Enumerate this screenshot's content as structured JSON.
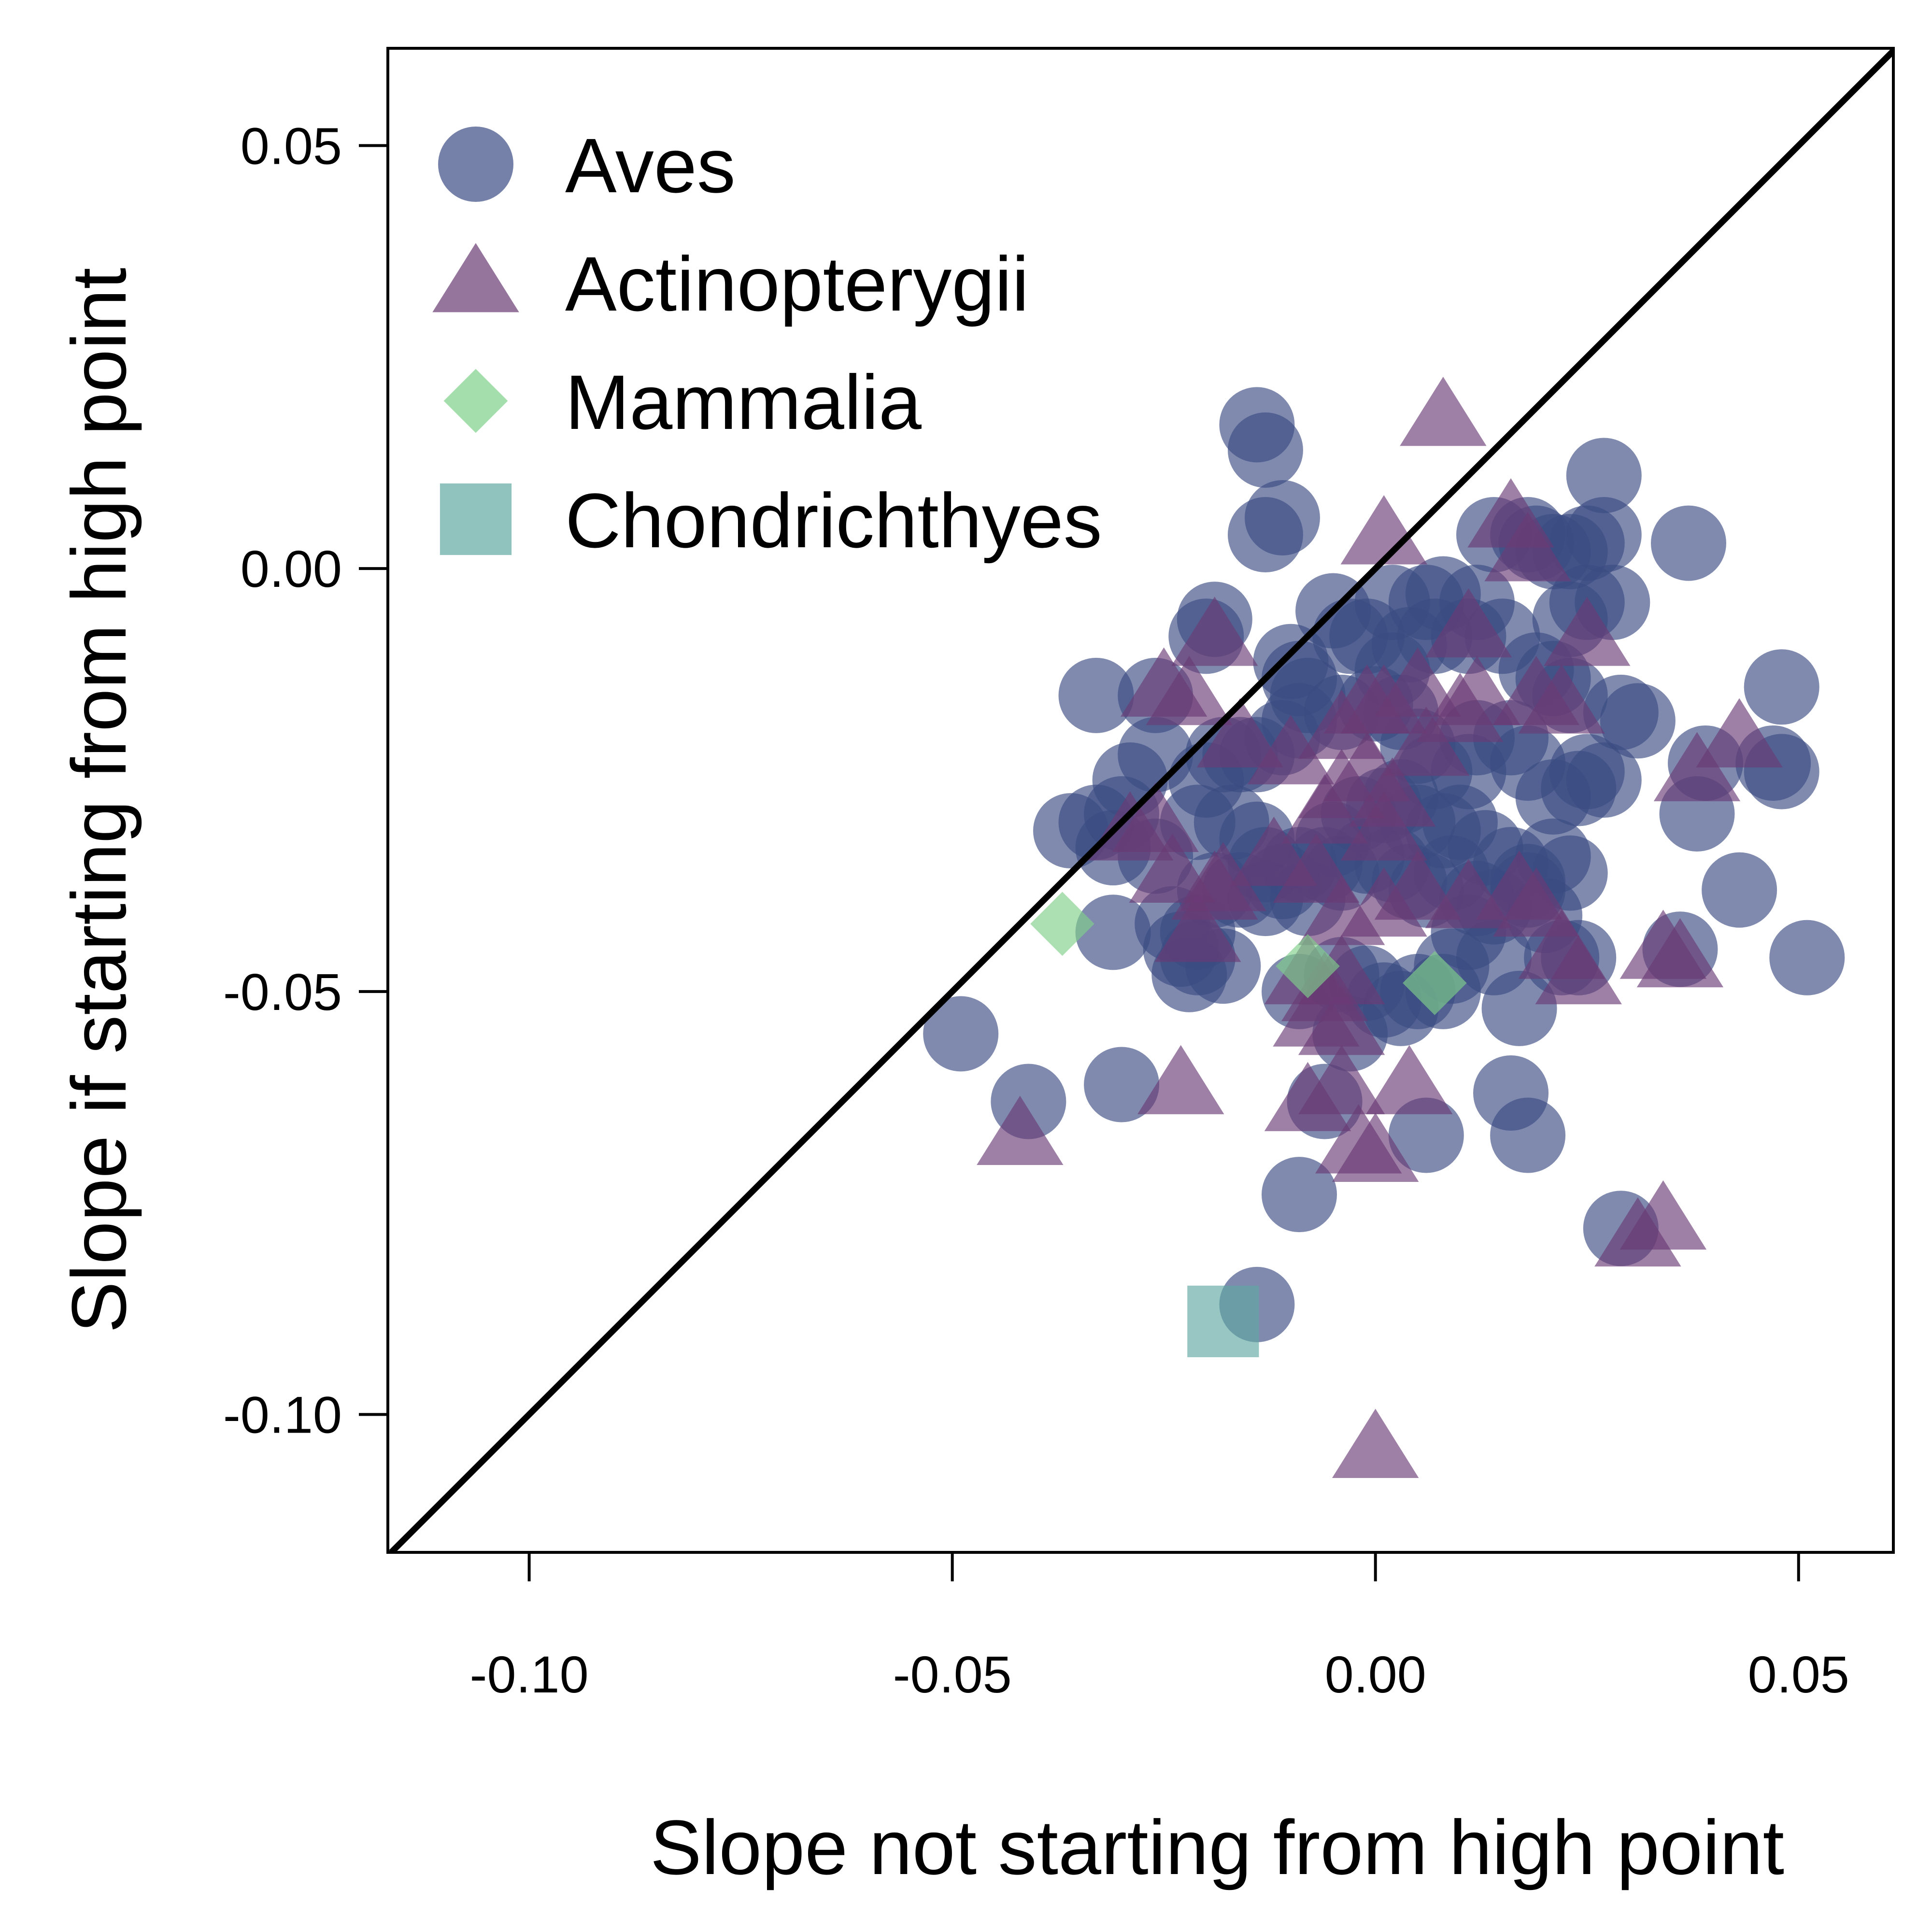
{
  "chart_data": {
    "type": "scatter",
    "xlabel": "Slope not starting from high point",
    "ylabel": "Slope if starting from high point",
    "xlim": [
      -0.1167,
      0.0612
    ],
    "ylim": [
      -0.1163,
      0.0615
    ],
    "xticks": [
      {
        "value": -0.1,
        "label": "-0.10"
      },
      {
        "value": -0.05,
        "label": "-0.05"
      },
      {
        "value": 0.0,
        "label": "0.00"
      },
      {
        "value": 0.05,
        "label": "0.05"
      }
    ],
    "yticks": [
      {
        "value": 0.05,
        "label": "0.05"
      },
      {
        "value": 0.0,
        "label": "0.00"
      },
      {
        "value": -0.05,
        "label": "-0.05"
      },
      {
        "value": -0.1,
        "label": "-0.10"
      }
    ],
    "reference_line": "y = x",
    "legend_position": "top-left",
    "grid": false,
    "series": [
      {
        "name": "Aves",
        "marker": "circle",
        "color": "#3b4b83",
        "points": [
          [
            -0.014,
            0.017
          ],
          [
            -0.013,
            0.014
          ],
          [
            -0.011,
            0.006
          ],
          [
            -0.013,
            0.004
          ],
          [
            -0.019,
            -0.006
          ],
          [
            -0.02,
            -0.008
          ],
          [
            -0.033,
            -0.015
          ],
          [
            -0.026,
            -0.015
          ],
          [
            -0.01,
            -0.011
          ],
          [
            -0.009,
            -0.013
          ],
          [
            -0.005,
            -0.005
          ],
          [
            -0.003,
            -0.008
          ],
          [
            -0.001,
            -0.008
          ],
          [
            0.002,
            -0.004
          ],
          [
            0.006,
            -0.004
          ],
          [
            0.008,
            -0.003
          ],
          [
            0.012,
            -0.004
          ],
          [
            0.014,
            0.004
          ],
          [
            0.018,
            0.004
          ],
          [
            0.019,
            0.003
          ],
          [
            0.021,
            0.002
          ],
          [
            0.023,
            0.002
          ],
          [
            0.025,
            0.003
          ],
          [
            0.027,
            0.004
          ],
          [
            0.027,
            0.011
          ],
          [
            0.037,
            0.003
          ],
          [
            0.025,
            -0.004
          ],
          [
            0.028,
            -0.004
          ],
          [
            0.023,
            -0.006
          ],
          [
            0.015,
            -0.008
          ],
          [
            0.011,
            -0.008
          ],
          [
            0.007,
            -0.008
          ],
          [
            0.004,
            -0.009
          ],
          [
            0.002,
            -0.012
          ],
          [
            0.019,
            -0.012
          ],
          [
            0.021,
            -0.013
          ],
          [
            0.023,
            -0.015
          ],
          [
            0.029,
            -0.017
          ],
          [
            0.031,
            -0.018
          ],
          [
            0.048,
            -0.014
          ],
          [
            0.047,
            -0.023
          ],
          [
            0.048,
            -0.024
          ],
          [
            0.039,
            -0.023
          ],
          [
            0.038,
            -0.029
          ],
          [
            0.043,
            -0.038
          ],
          [
            0.051,
            -0.046
          ],
          [
            0.036,
            -0.045
          ],
          [
            0.025,
            -0.024
          ],
          [
            0.027,
            -0.025
          ],
          [
            0.024,
            -0.026
          ],
          [
            0.021,
            -0.027
          ],
          [
            0.018,
            -0.023
          ],
          [
            0.016,
            -0.02
          ],
          [
            0.012,
            -0.02
          ],
          [
            0.011,
            -0.024
          ],
          [
            0.007,
            -0.024
          ],
          [
            0.005,
            -0.021
          ],
          [
            0.003,
            -0.017
          ],
          [
            0.0,
            -0.016
          ],
          [
            -0.004,
            -0.017
          ],
          [
            -0.008,
            -0.015
          ],
          [
            -0.009,
            -0.018
          ],
          [
            -0.011,
            -0.02
          ],
          [
            -0.014,
            -0.022
          ],
          [
            -0.016,
            -0.022
          ],
          [
            -0.018,
            -0.022
          ],
          [
            -0.02,
            -0.025
          ],
          [
            -0.026,
            -0.022
          ],
          [
            -0.029,
            -0.025
          ],
          [
            -0.03,
            -0.029
          ],
          [
            -0.033,
            -0.03
          ],
          [
            -0.036,
            -0.031
          ],
          [
            -0.031,
            -0.033
          ],
          [
            -0.026,
            -0.034
          ],
          [
            -0.021,
            -0.03
          ],
          [
            -0.017,
            -0.03
          ],
          [
            -0.014,
            -0.032
          ],
          [
            -0.013,
            -0.035
          ],
          [
            -0.011,
            -0.037
          ],
          [
            -0.009,
            -0.035
          ],
          [
            -0.005,
            -0.032
          ],
          [
            -0.002,
            -0.029
          ],
          [
            0.001,
            -0.028
          ],
          [
            0.003,
            -0.027
          ],
          [
            0.005,
            -0.03
          ],
          [
            0.008,
            -0.031
          ],
          [
            0.01,
            -0.03
          ],
          [
            0.013,
            -0.033
          ],
          [
            0.016,
            -0.035
          ],
          [
            0.018,
            -0.037
          ],
          [
            0.021,
            -0.034
          ],
          [
            0.023,
            -0.036
          ],
          [
            0.02,
            -0.041
          ],
          [
            0.018,
            -0.038
          ],
          [
            0.014,
            -0.04
          ],
          [
            0.012,
            -0.039
          ],
          [
            0.009,
            -0.036
          ],
          [
            0.006,
            -0.038
          ],
          [
            0.004,
            -0.037
          ],
          [
            0.002,
            -0.035
          ],
          [
            -0.001,
            -0.034
          ],
          [
            -0.004,
            -0.036
          ],
          [
            -0.006,
            -0.035
          ],
          [
            -0.008,
            -0.039
          ],
          [
            -0.013,
            -0.039
          ],
          [
            -0.016,
            -0.038
          ],
          [
            -0.019,
            -0.038
          ],
          [
            -0.021,
            -0.043
          ],
          [
            -0.024,
            -0.042
          ],
          [
            -0.023,
            -0.045
          ],
          [
            -0.021,
            -0.046
          ],
          [
            -0.018,
            -0.047
          ],
          [
            -0.022,
            -0.048
          ],
          [
            -0.031,
            -0.043
          ],
          [
            -0.049,
            -0.055
          ],
          [
            -0.041,
            -0.063
          ],
          [
            -0.03,
            -0.061
          ],
          [
            -0.009,
            -0.05
          ],
          [
            -0.004,
            -0.048
          ],
          [
            -0.001,
            -0.049
          ],
          [
            0.001,
            -0.051
          ],
          [
            0.003,
            -0.052
          ],
          [
            0.005,
            -0.05
          ],
          [
            0.008,
            -0.05
          ],
          [
            0.009,
            -0.047
          ],
          [
            0.011,
            -0.043
          ],
          [
            0.014,
            -0.046
          ],
          [
            0.017,
            -0.052
          ],
          [
            0.016,
            -0.062
          ],
          [
            0.018,
            -0.067
          ],
          [
            0.006,
            -0.067
          ],
          [
            -0.003,
            -0.055
          ],
          [
            -0.006,
            -0.063
          ],
          [
            -0.009,
            -0.074
          ],
          [
            0.029,
            -0.078
          ],
          [
            -0.014,
            -0.087
          ],
          [
            0.024,
            -0.046
          ],
          [
            0.022,
            -0.046
          ]
        ]
      },
      {
        "name": "Actinopterygii",
        "marker": "triangle",
        "color": "#6a3b74",
        "points": [
          [
            0.008,
            0.018
          ],
          [
            0.016,
            0.006
          ],
          [
            0.001,
            0.004
          ],
          [
            0.018,
            0.002
          ],
          [
            -0.019,
            -0.008
          ],
          [
            0.025,
            -0.008
          ],
          [
            0.011,
            -0.007
          ],
          [
            -0.025,
            -0.014
          ],
          [
            -0.022,
            -0.015
          ],
          [
            -0.001,
            -0.016
          ],
          [
            0.001,
            -0.016
          ],
          [
            0.005,
            -0.014
          ],
          [
            0.01,
            -0.017
          ],
          [
            0.012,
            -0.015
          ],
          [
            0.019,
            -0.015
          ],
          [
            0.022,
            -0.016
          ],
          [
            -0.016,
            -0.02
          ],
          [
            -0.01,
            -0.022
          ],
          [
            -0.004,
            -0.019
          ],
          [
            -0.001,
            -0.024
          ],
          [
            0.006,
            -0.021
          ],
          [
            0.043,
            -0.02
          ],
          [
            0.038,
            -0.024
          ],
          [
            0.002,
            -0.027
          ],
          [
            -0.004,
            -0.026
          ],
          [
            -0.006,
            -0.029
          ],
          [
            0.001,
            -0.031
          ],
          [
            -0.012,
            -0.034
          ],
          [
            -0.026,
            -0.03
          ],
          [
            -0.029,
            -0.031
          ],
          [
            -0.024,
            -0.036
          ],
          [
            -0.019,
            -0.038
          ],
          [
            -0.018,
            -0.037
          ],
          [
            -0.021,
            -0.043
          ],
          [
            -0.007,
            -0.036
          ],
          [
            -0.004,
            -0.041
          ],
          [
            0.001,
            -0.04
          ],
          [
            0.005,
            -0.038
          ],
          [
            0.011,
            -0.039
          ],
          [
            0.017,
            -0.038
          ],
          [
            0.019,
            -0.04
          ],
          [
            0.024,
            -0.048
          ],
          [
            0.022,
            -0.045
          ],
          [
            0.034,
            -0.045
          ],
          [
            0.036,
            -0.046
          ],
          [
            -0.008,
            -0.048
          ],
          [
            -0.006,
            -0.05
          ],
          [
            -0.004,
            -0.048
          ],
          [
            -0.004,
            -0.054
          ],
          [
            -0.007,
            -0.053
          ],
          [
            -0.023,
            -0.061
          ],
          [
            -0.008,
            -0.063
          ],
          [
            -0.004,
            -0.061
          ],
          [
            0.004,
            -0.061
          ],
          [
            -0.042,
            -0.067
          ],
          [
            -0.002,
            -0.068
          ],
          [
            0.0,
            -0.069
          ],
          [
            0.034,
            -0.077
          ],
          [
            0.031,
            -0.079
          ],
          [
            0.0,
            -0.104
          ]
        ]
      },
      {
        "name": "Mammalia",
        "marker": "diamond",
        "color": "#7fd08a",
        "points": [
          [
            -0.037,
            -0.042
          ],
          [
            -0.008,
            -0.047
          ],
          [
            0.007,
            -0.049
          ]
        ]
      },
      {
        "name": "Chondrichthyes",
        "marker": "square",
        "color": "#61a8a3",
        "points": [
          [
            -0.018,
            -0.089
          ]
        ]
      }
    ]
  }
}
